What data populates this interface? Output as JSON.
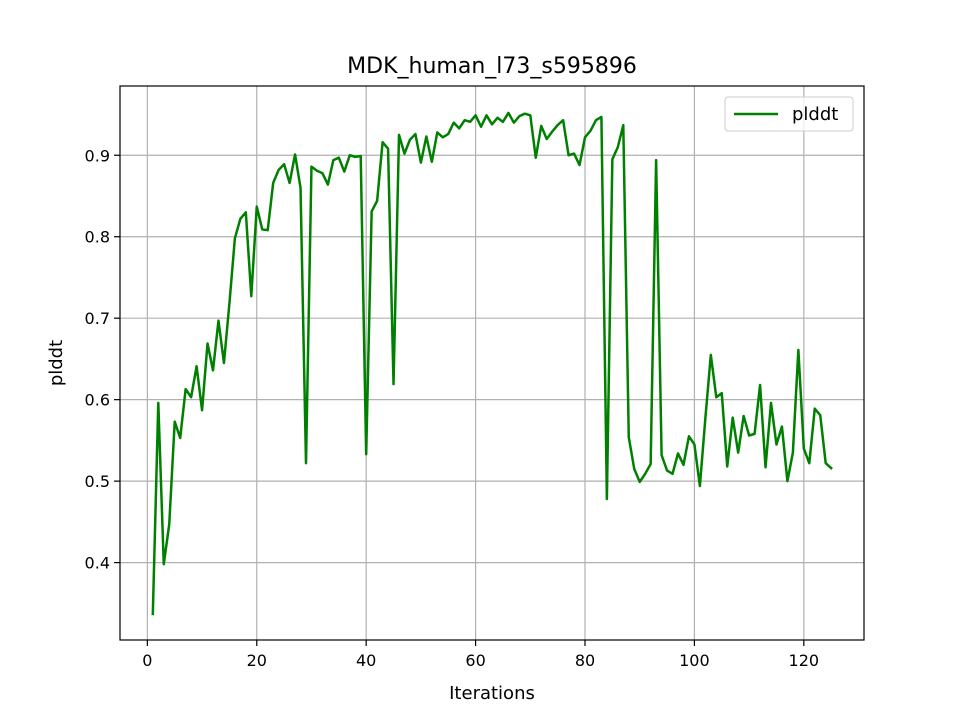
{
  "chart_data": {
    "type": "line",
    "title": "MDK_human_l73_s595896",
    "xlabel": "Iterations",
    "ylabel": "plddt",
    "xlim": [
      -5,
      131
    ],
    "ylim": [
      0.305,
      0.985
    ],
    "xticks": [
      0,
      20,
      40,
      60,
      80,
      100,
      120
    ],
    "yticks": [
      0.4,
      0.5,
      0.6,
      0.7,
      0.8,
      0.9
    ],
    "grid": true,
    "legend_position": "top-right",
    "series": [
      {
        "name": "plddt",
        "color": "#008000",
        "x": [
          1,
          2,
          3,
          4,
          5,
          6,
          7,
          8,
          9,
          10,
          11,
          12,
          13,
          14,
          15,
          16,
          17,
          18,
          19,
          20,
          21,
          22,
          23,
          24,
          25,
          26,
          27,
          28,
          29,
          30,
          31,
          32,
          33,
          34,
          35,
          36,
          37,
          38,
          39,
          40,
          41,
          42,
          43,
          44,
          45,
          46,
          47,
          48,
          49,
          50,
          51,
          52,
          53,
          54,
          55,
          56,
          57,
          58,
          59,
          60,
          61,
          62,
          63,
          64,
          65,
          66,
          67,
          68,
          69,
          70,
          71,
          72,
          73,
          74,
          75,
          76,
          77,
          78,
          79,
          80,
          81,
          82,
          83,
          84,
          85,
          86,
          87,
          88,
          89,
          90,
          91,
          92,
          93,
          94,
          95,
          96,
          97,
          98,
          99,
          100,
          101,
          102,
          103,
          104,
          105,
          106,
          107,
          108,
          109,
          110,
          111,
          112,
          113,
          114,
          115,
          116,
          117,
          118,
          119,
          120,
          121,
          122,
          123,
          124,
          125
        ],
        "y": [
          0.337,
          0.596,
          0.398,
          0.447,
          0.573,
          0.553,
          0.613,
          0.603,
          0.641,
          0.587,
          0.669,
          0.636,
          0.697,
          0.645,
          0.718,
          0.798,
          0.822,
          0.83,
          0.727,
          0.837,
          0.809,
          0.808,
          0.866,
          0.882,
          0.889,
          0.866,
          0.901,
          0.86,
          0.522,
          0.886,
          0.881,
          0.878,
          0.864,
          0.894,
          0.897,
          0.88,
          0.9,
          0.898,
          0.899,
          0.533,
          0.831,
          0.844,
          0.916,
          0.908,
          0.619,
          0.925,
          0.902,
          0.919,
          0.926,
          0.891,
          0.923,
          0.892,
          0.928,
          0.922,
          0.926,
          0.94,
          0.933,
          0.943,
          0.941,
          0.949,
          0.935,
          0.949,
          0.938,
          0.946,
          0.941,
          0.952,
          0.94,
          0.948,
          0.951,
          0.949,
          0.897,
          0.936,
          0.92,
          0.929,
          0.937,
          0.943,
          0.9,
          0.902,
          0.888,
          0.922,
          0.93,
          0.943,
          0.947,
          0.478,
          0.895,
          0.91,
          0.937,
          0.554,
          0.515,
          0.499,
          0.509,
          0.521,
          0.894,
          0.532,
          0.513,
          0.509,
          0.534,
          0.52,
          0.555,
          0.545,
          0.494,
          0.577,
          0.655,
          0.603,
          0.608,
          0.518,
          0.578,
          0.535,
          0.58,
          0.556,
          0.558,
          0.618,
          0.517,
          0.596,
          0.545,
          0.567,
          0.5,
          0.535,
          0.661,
          0.54,
          0.522,
          0.589,
          0.581,
          0.522,
          0.516
        ]
      }
    ]
  }
}
